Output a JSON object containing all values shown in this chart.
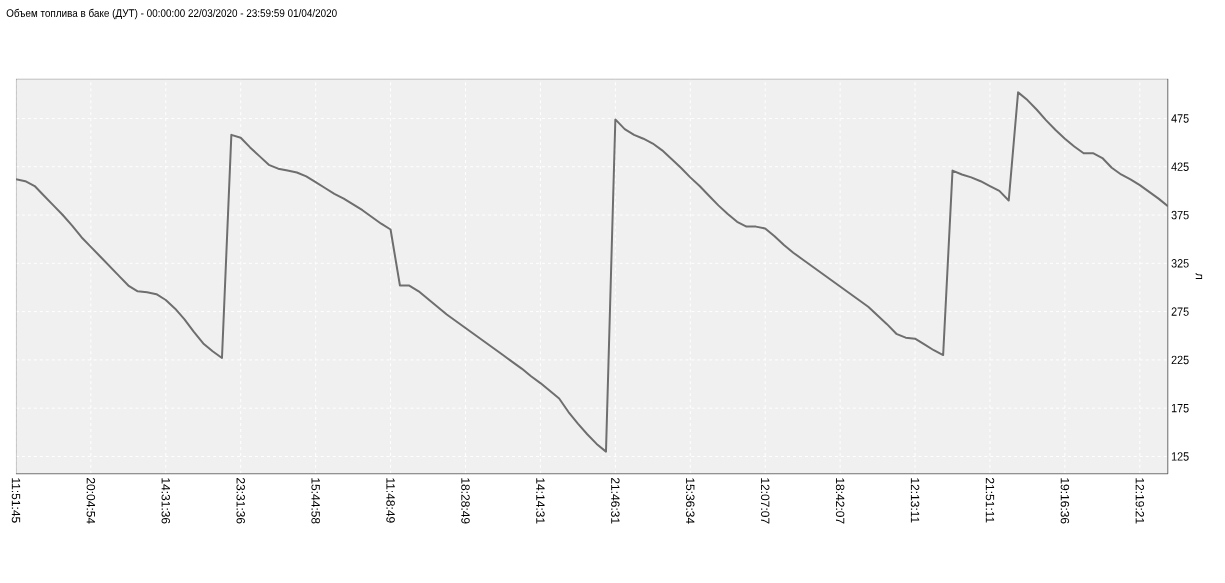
{
  "chart_data": {
    "type": "line",
    "title": "Объем топлива в баке (ДУТ) - 00:00:00 22/03/2020 - 23:59:59 01/04/2020",
    "ylabel": "л",
    "categories": [
      "11:51:45",
      null,
      null,
      null,
      null,
      null,
      null,
      null,
      "20:04:54",
      null,
      null,
      null,
      null,
      null,
      null,
      null,
      "14:31:36",
      null,
      null,
      null,
      null,
      null,
      null,
      null,
      "23:31:36",
      null,
      null,
      null,
      null,
      null,
      null,
      null,
      "15:44:58",
      null,
      null,
      null,
      null,
      null,
      null,
      null,
      "11:48:49",
      null,
      null,
      null,
      null,
      null,
      null,
      null,
      "18:28:49",
      null,
      null,
      null,
      null,
      null,
      null,
      null,
      "14:14:31",
      null,
      null,
      null,
      null,
      null,
      null,
      null,
      "21:46:31",
      null,
      null,
      null,
      null,
      null,
      null,
      null,
      "15:36:34",
      null,
      null,
      null,
      null,
      null,
      null,
      null,
      "12:07:07",
      null,
      null,
      null,
      null,
      null,
      null,
      null,
      "18:42:07",
      null,
      null,
      null,
      null,
      null,
      null,
      null,
      "12:13:11",
      null,
      null,
      null,
      null,
      null,
      null,
      null,
      "21:51:11",
      null,
      null,
      null,
      null,
      null,
      null,
      null,
      "19:16:36",
      null,
      null,
      null,
      null,
      null,
      null,
      null,
      "12:19:21",
      null,
      null,
      null
    ],
    "series": [
      {
        "color": "#6e6e6e",
        "values": [
          412,
          410,
          405,
          395,
          385,
          375,
          364,
          352,
          342,
          332,
          322,
          312,
          302,
          296,
          295,
          293,
          287,
          278,
          267,
          254,
          242,
          234,
          227,
          458,
          455,
          445,
          436,
          427,
          423,
          421,
          419,
          415,
          409,
          403,
          397,
          392,
          386,
          380,
          373,
          366,
          360,
          302,
          302,
          296,
          288,
          280,
          272,
          265,
          258,
          251,
          244,
          237,
          230,
          223,
          216,
          208,
          201,
          193,
          185,
          171,
          159,
          148,
          138,
          130,
          474,
          464,
          458,
          454,
          449,
          442,
          433,
          424,
          414,
          405,
          395,
          385,
          376,
          368,
          363,
          363,
          361,
          353,
          344,
          336,
          329,
          322,
          315,
          308,
          301,
          294,
          287,
          280,
          271,
          262,
          252,
          248,
          247,
          241,
          235,
          230,
          421,
          417,
          414,
          410,
          405,
          400,
          390,
          502,
          494,
          484,
          473,
          463,
          454,
          446,
          439,
          439,
          434,
          424,
          417,
          412,
          406,
          399,
          392,
          384
        ]
      }
    ],
    "ylim": [
      107,
      516
    ],
    "yticks": [
      125,
      175,
      225,
      275,
      325,
      375,
      425,
      475
    ],
    "grid": true,
    "line_style": "solid"
  }
}
